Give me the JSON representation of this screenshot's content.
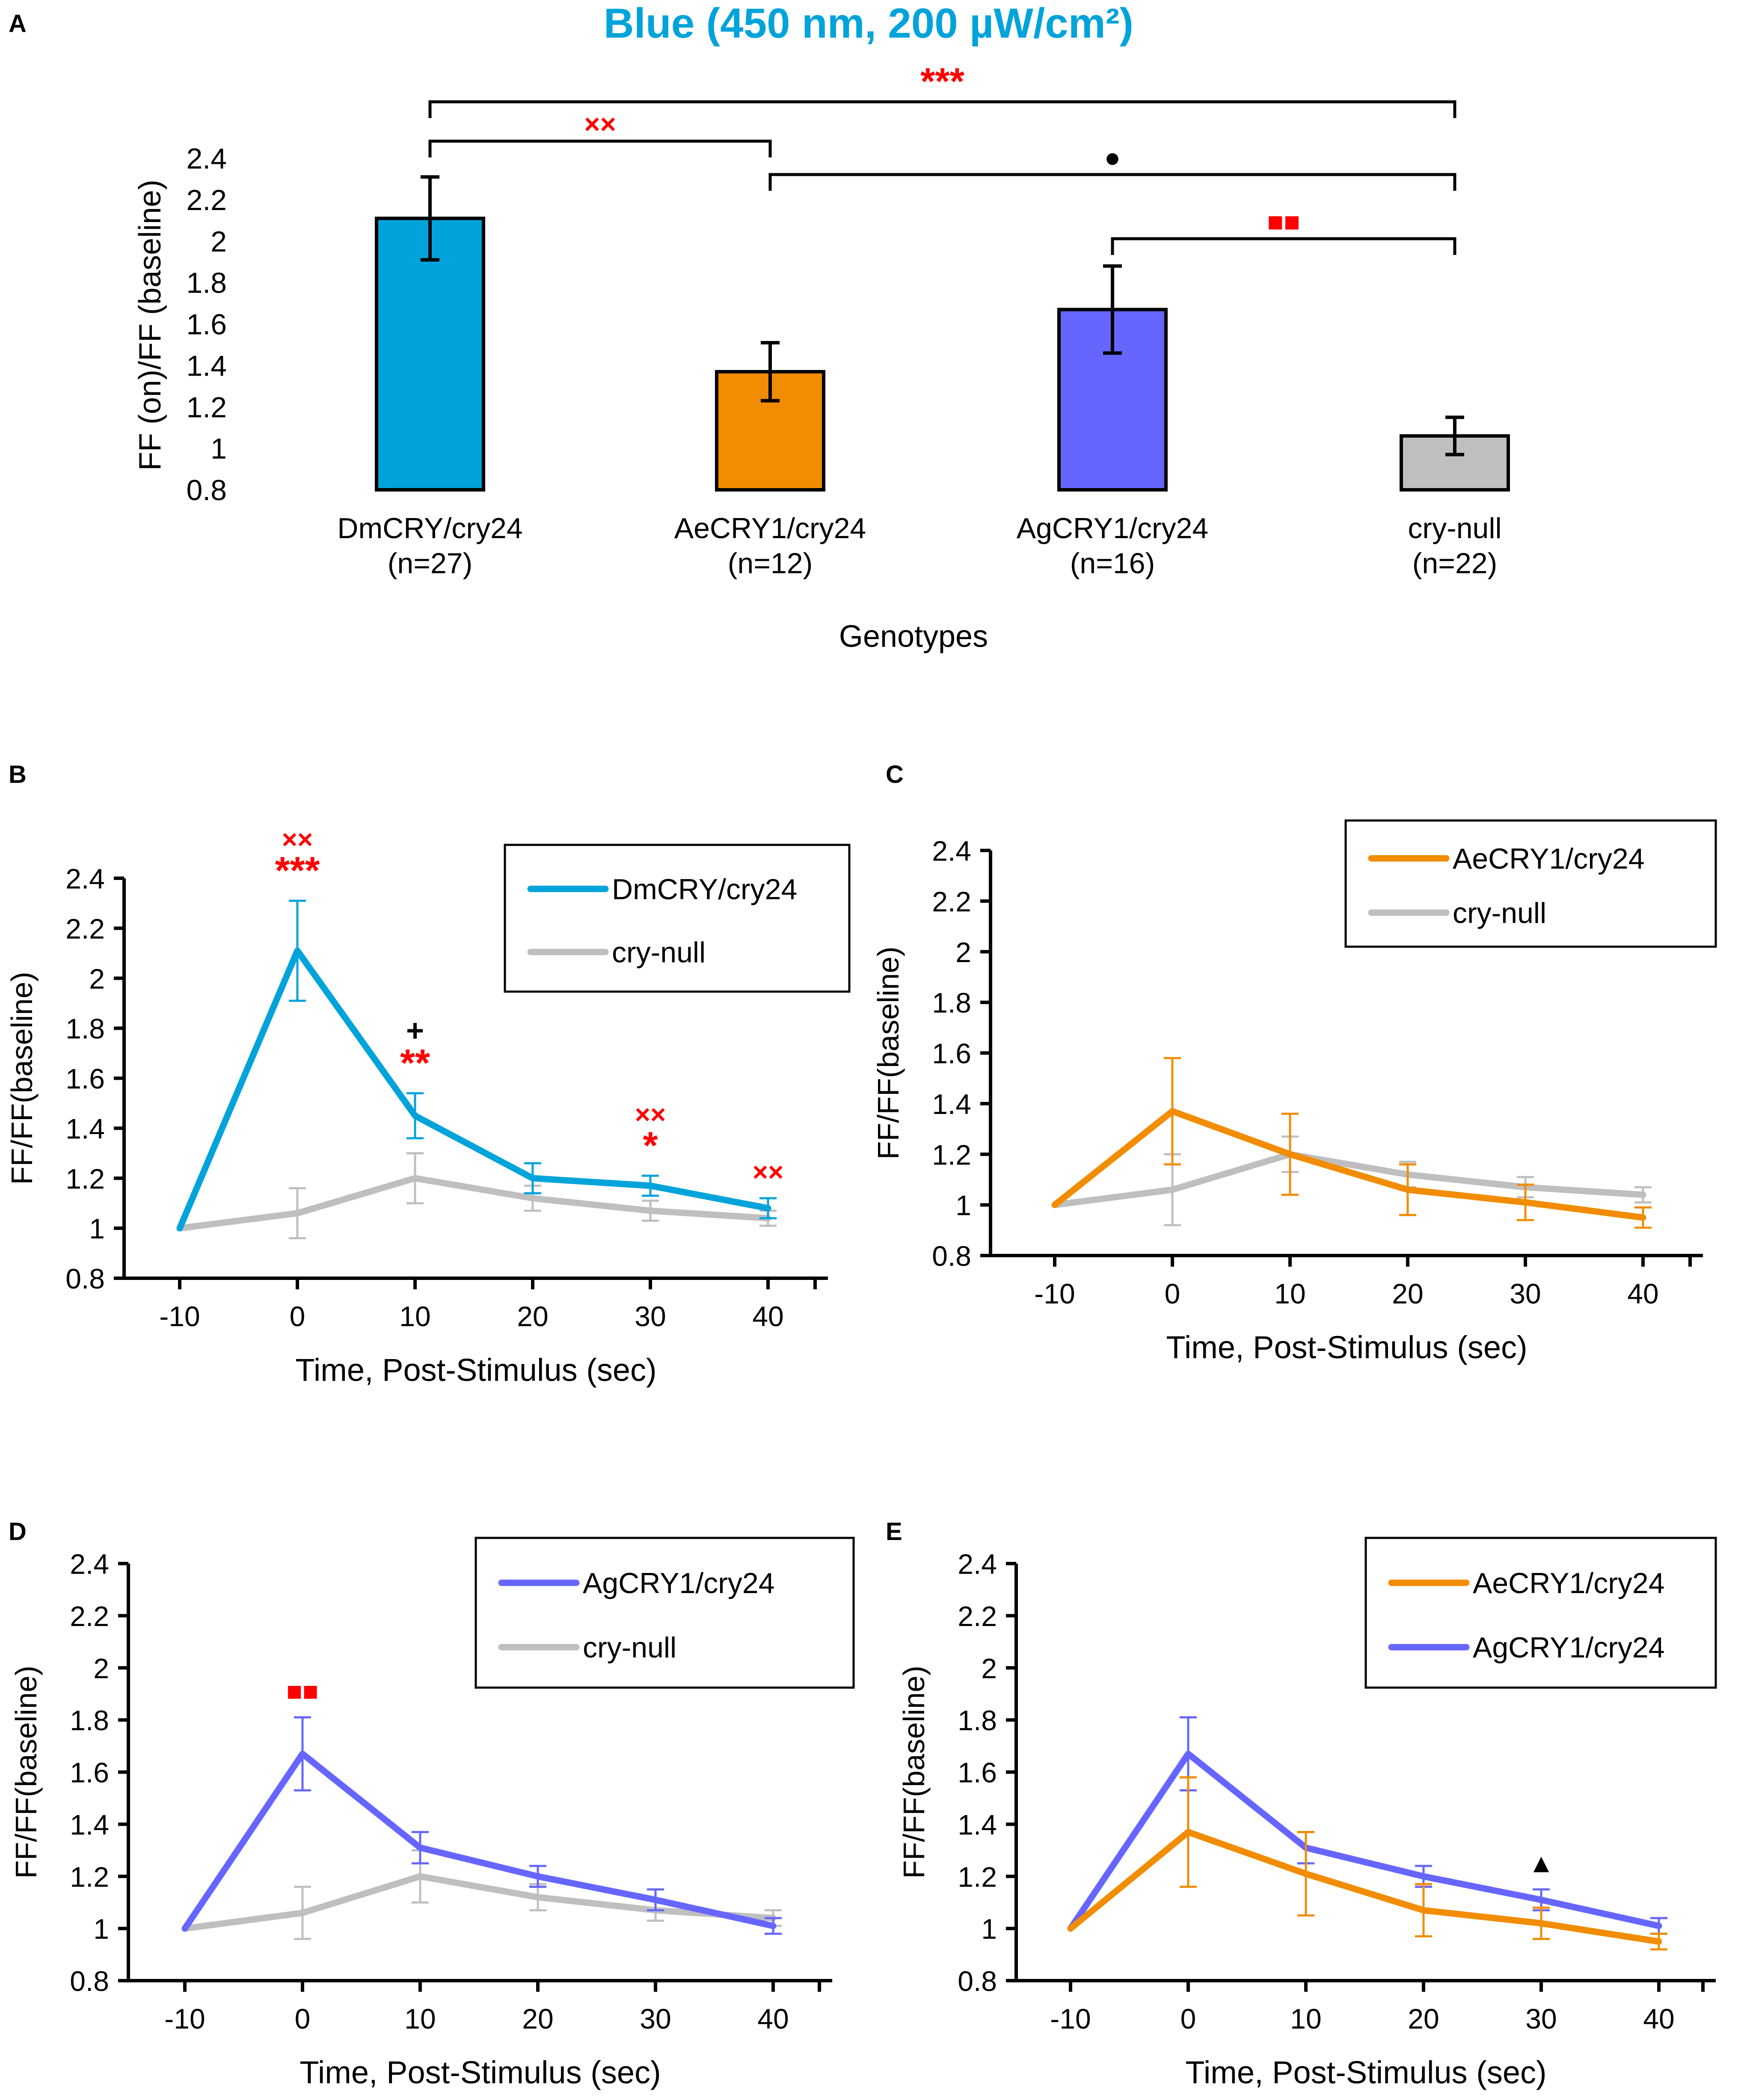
{
  "colors": {
    "dm": "#00a3da",
    "ae": "#f28c00",
    "ag": "#6666ff",
    "null": "#bfbfbf",
    "sig": "#ff0000",
    "black": "#000000"
  },
  "chart_data": [
    {
      "id": "A",
      "type": "bar",
      "panel_label": "A",
      "title": "Blue (450 nm, 200 µW/cm²)",
      "xlabel": "Genotypes",
      "ylabel": "FF (on)/FF (baseline)",
      "ylim": [
        0.8,
        2.4
      ],
      "yticks": [
        "0.8",
        "1",
        "1.2",
        "1.4",
        "1.6",
        "1.8",
        "2",
        "2.2",
        "2.4"
      ],
      "categories": [
        "DmCRY/cry24",
        "AeCRY1/cry24",
        "AgCRY1/cry24",
        "cry-null"
      ],
      "n_labels": [
        "(n=27)",
        "(n=12)",
        "(n=16)",
        "(n=22)"
      ],
      "values": [
        2.11,
        1.37,
        1.67,
        1.06
      ],
      "errors": [
        0.2,
        0.14,
        0.21,
        0.09
      ],
      "bar_colors": [
        "#00a3da",
        "#f28c00",
        "#6666ff",
        "#bfbfbf"
      ],
      "comparisons": [
        {
          "from": 0,
          "to": 3,
          "label": "***",
          "color": "#ff0000"
        },
        {
          "from": 0,
          "to": 1,
          "label": "××",
          "color": "#ff0000"
        },
        {
          "from": 1,
          "to": 3,
          "label": "●",
          "color": "#000000"
        },
        {
          "from": 2,
          "to": 3,
          "label": "■■",
          "color": "#ff0000"
        }
      ]
    },
    {
      "id": "B",
      "type": "line",
      "panel_label": "B",
      "xlabel": "Time, Post-Stimulus (sec)",
      "ylabel": "FF/FF(baseline)",
      "ylim": [
        0.8,
        2.4
      ],
      "yticks": [
        "0.8",
        "1",
        "1.2",
        "1.4",
        "1.6",
        "1.8",
        "2",
        "2.2",
        "2.4"
      ],
      "x": [
        -10,
        0,
        10,
        20,
        30,
        40
      ],
      "xticks": [
        "-10",
        "0",
        "10",
        "20",
        "30",
        "40"
      ],
      "series": [
        {
          "name": "DmCRY/cry24",
          "color": "#00a3da",
          "values": [
            1.0,
            2.11,
            1.45,
            1.2,
            1.17,
            1.08
          ],
          "errors": [
            0,
            0.2,
            0.09,
            0.06,
            0.04,
            0.04
          ]
        },
        {
          "name": "cry-null",
          "color": "#bfbfbf",
          "values": [
            1.0,
            1.06,
            1.2,
            1.12,
            1.07,
            1.04
          ],
          "errors": [
            0,
            0.1,
            0.1,
            0.05,
            0.04,
            0.03
          ]
        }
      ],
      "annotations": [
        {
          "x": 0,
          "lines": [
            {
              "text": "××",
              "color": "#ff0000"
            },
            {
              "text": "***",
              "color": "#ff0000"
            }
          ]
        },
        {
          "x": 10,
          "lines": [
            {
              "text": "+",
              "color": "#000000"
            },
            {
              "text": "**",
              "color": "#ff0000"
            }
          ]
        },
        {
          "x": 30,
          "lines": [
            {
              "text": "××",
              "color": "#ff0000"
            },
            {
              "text": "*",
              "color": "#ff0000"
            }
          ]
        },
        {
          "x": 40,
          "lines": [
            {
              "text": "××",
              "color": "#ff0000"
            }
          ]
        }
      ]
    },
    {
      "id": "C",
      "type": "line",
      "panel_label": "C",
      "xlabel": "Time, Post-Stimulus (sec)",
      "ylabel": "FF/FF(baseline)",
      "ylim": [
        0.8,
        2.4
      ],
      "yticks": [
        "0.8",
        "1",
        "1.2",
        "1.4",
        "1.6",
        "1.8",
        "2",
        "2.2",
        "2.4"
      ],
      "x": [
        -10,
        0,
        10,
        20,
        30,
        40
      ],
      "xticks": [
        "-10",
        "0",
        "10",
        "20",
        "30",
        "40"
      ],
      "series": [
        {
          "name": "AeCRY1/cry24",
          "color": "#f28c00",
          "values": [
            1.0,
            1.37,
            1.2,
            1.06,
            1.01,
            0.95
          ],
          "errors": [
            0,
            0.21,
            0.16,
            0.1,
            0.07,
            0.04
          ]
        },
        {
          "name": "cry-null",
          "color": "#bfbfbf",
          "values": [
            1.0,
            1.06,
            1.2,
            1.12,
            1.07,
            1.04
          ],
          "errors": [
            0,
            0.14,
            0.07,
            0.05,
            0.04,
            0.03
          ]
        }
      ],
      "annotations": []
    },
    {
      "id": "D",
      "type": "line",
      "panel_label": "D",
      "xlabel": "Time, Post-Stimulus (sec)",
      "ylabel": "FF/FF(baseline)",
      "ylim": [
        0.8,
        2.4
      ],
      "yticks": [
        "0.8",
        "1",
        "1.2",
        "1.4",
        "1.6",
        "1.8",
        "2",
        "2.2",
        "2.4"
      ],
      "x": [
        -10,
        0,
        10,
        20,
        30,
        40
      ],
      "xticks": [
        "-10",
        "0",
        "10",
        "20",
        "30",
        "40"
      ],
      "series": [
        {
          "name": "AgCRY1/cry24",
          "color": "#6666ff",
          "values": [
            1.0,
            1.67,
            1.31,
            1.2,
            1.11,
            1.01
          ],
          "errors": [
            0,
            0.14,
            0.06,
            0.04,
            0.04,
            0.03
          ]
        },
        {
          "name": "cry-null",
          "color": "#bfbfbf",
          "values": [
            1.0,
            1.06,
            1.2,
            1.12,
            1.07,
            1.04
          ],
          "errors": [
            0,
            0.1,
            0.1,
            0.05,
            0.04,
            0.03
          ]
        }
      ],
      "annotations": [
        {
          "x": 0,
          "lines": [
            {
              "text": "■■",
              "color": "#ff0000"
            }
          ]
        }
      ]
    },
    {
      "id": "E",
      "type": "line",
      "panel_label": "E",
      "xlabel": "Time, Post-Stimulus (sec)",
      "ylabel": "FF/FF(baseline)",
      "ylim": [
        0.8,
        2.4
      ],
      "yticks": [
        "0.8",
        "1",
        "1.2",
        "1.4",
        "1.6",
        "1.8",
        "2",
        "2.2",
        "2.4"
      ],
      "x": [
        -10,
        0,
        10,
        20,
        30,
        40
      ],
      "xticks": [
        "-10",
        "0",
        "10",
        "20",
        "30",
        "40"
      ],
      "series": [
        {
          "name": "AeCRY1/cry24",
          "color": "#f28c00",
          "values": [
            1.0,
            1.37,
            1.21,
            1.07,
            1.02,
            0.95
          ],
          "errors": [
            0,
            0.21,
            0.16,
            0.1,
            0.06,
            0.03
          ]
        },
        {
          "name": "AgCRY1/cry24",
          "color": "#6666ff",
          "values": [
            1.0,
            1.67,
            1.31,
            1.2,
            1.11,
            1.01
          ],
          "errors": [
            0,
            0.14,
            0.06,
            0.04,
            0.04,
            0.03
          ]
        }
      ],
      "annotations": [
        {
          "x": 30,
          "lines": [
            {
              "text": "▲",
              "color": "#000000"
            }
          ]
        }
      ]
    }
  ]
}
